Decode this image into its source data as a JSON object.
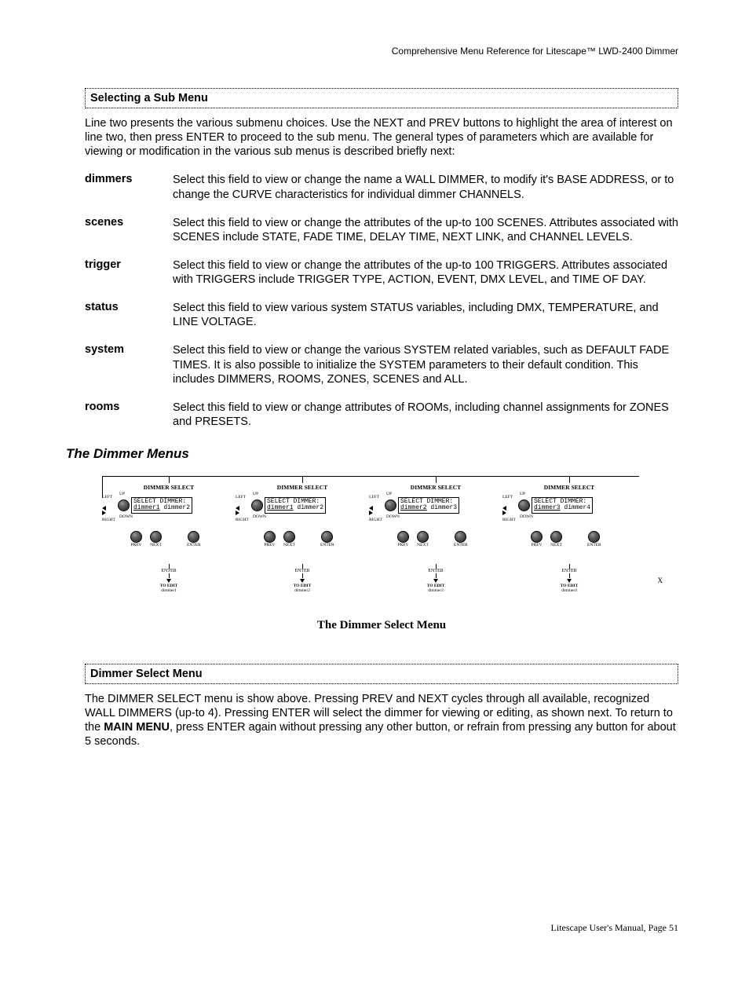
{
  "header": "Comprehensive Menu Reference for Litescape™ LWD-2400 Dimmer",
  "section1_title": "Selecting a Sub Menu",
  "intro": "Line two presents the various submenu choices. Use the NEXT and PREV buttons to highlight the area of interest on line two, then press ENTER to proceed to the sub menu. The general types of parameters which are available for viewing or modification in the various sub menus is described briefly next:",
  "defs": [
    {
      "term": "dimmers",
      "desc": "Select this field to view or change the name a WALL DIMMER, to modify it's BASE ADDRESS, or to change the CURVE characteristics for individual dimmer CHANNELS."
    },
    {
      "term": "scenes",
      "desc": "Select this field to view or change the attributes of the up-to 100 SCENES. Attributes associated with SCENES include STATE, FADE TIME, DELAY TIME, NEXT LINK, and CHANNEL LEVELS."
    },
    {
      "term": "trigger",
      "desc": "Select this field to view or change the attributes of the up-to 100 TRIGGERS. Attributes associated with TRIGGERS include TRIGGER TYPE, ACTION, EVENT, DMX LEVEL, and TIME OF DAY."
    },
    {
      "term": "status",
      "desc": "Select this field to view various system STATUS variables, including DMX, TEMPERATURE, and LINE VOLTAGE."
    },
    {
      "term": "system",
      "desc": "Select this field to view or change the various SYSTEM related variables, such as DEFAULT FADE TIMES. It is also possible to initialize the SYSTEM parameters to their default condition. This includes DIMMERS, ROOMS, ZONES, SCENES and ALL."
    },
    {
      "term": "rooms",
      "desc": "Select this field to view or change attributes of ROOMs, including channel assignments for ZONES and PRESETS."
    }
  ],
  "section2_title": "The Dimmer Menus",
  "diagram": {
    "panel_title": "DIMMER SELECT",
    "left_label": "LEFT",
    "right_label": "RIGHT",
    "up_label": "UP",
    "down_label": "DOWN",
    "prev_label": "PREV",
    "next_label": "NEXT",
    "enter_label": "ENTER",
    "toedit_label": "TO EDIT",
    "lcd_line1": "SELECT DIMMER:",
    "panels": [
      {
        "lcd_a": "dimmer1",
        "lcd_b": "dimmer2",
        "edit": "dimmer1"
      },
      {
        "lcd_a": "dimmer1",
        "lcd_b": "dimmer2",
        "edit": "dimmer2"
      },
      {
        "lcd_a": "dimmer2",
        "lcd_b": "dimmer3",
        "edit": "dimmer3"
      },
      {
        "lcd_a": "dimmer3",
        "lcd_b": "dimmer4",
        "edit": "dimmer4"
      }
    ],
    "x_mark": "X",
    "caption": "The Dimmer Select Menu"
  },
  "section3_title": "Dimmer Select Menu",
  "body_pre": "The DIMMER SELECT menu is show above. Pressing PREV and NEXT cycles through all available, recognized WALL DIMMERS (up-to 4). Pressing ENTER will select the dimmer for viewing or editing, as shown next. To return to the ",
  "body_bold": "MAIN MENU",
  "body_post": ", press ENTER again without pressing any other button, or refrain from pressing any button for about 5 seconds.",
  "footer": "Litescape User's Manual, Page 51"
}
